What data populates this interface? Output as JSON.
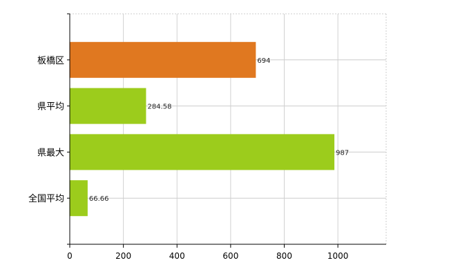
{
  "chart_data": {
    "type": "bar",
    "orientation": "horizontal",
    "categories": [
      "板橋区",
      "県平均",
      "県最大",
      "全国平均"
    ],
    "values": [
      694,
      284.58,
      987,
      66.66
    ],
    "value_labels": [
      "694",
      "284.58",
      "987",
      "66.66"
    ],
    "bar_colors": [
      "#e07820",
      "#9ccc1c",
      "#9ccc1c",
      "#9ccc1c"
    ],
    "xlim": [
      0,
      1180
    ],
    "xticks": [
      0,
      200,
      400,
      600,
      800,
      1000
    ],
    "grid": true,
    "title": "",
    "xlabel": "",
    "ylabel": ""
  }
}
